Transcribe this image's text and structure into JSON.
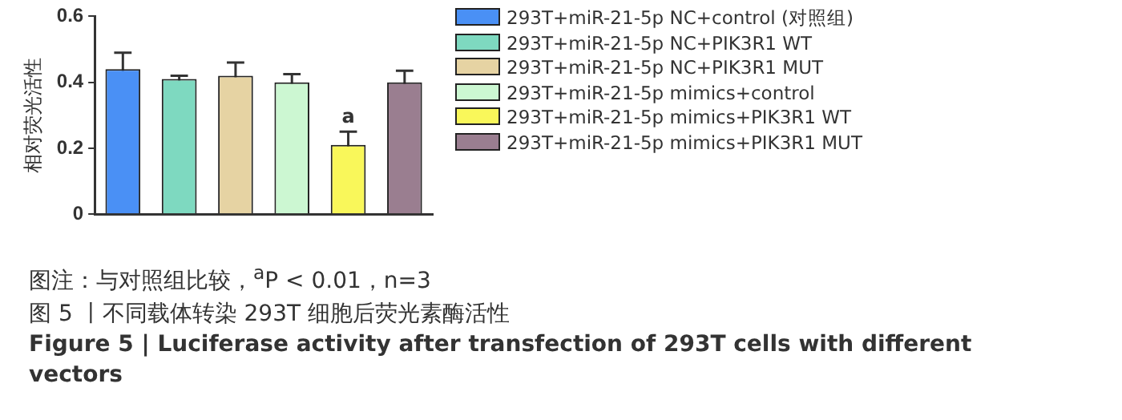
{
  "chart_data": {
    "type": "bar",
    "ylabel": "相对荧光活性",
    "categories": [
      null,
      null,
      null,
      null,
      null,
      null
    ],
    "series": [
      {
        "name": "293T+miR-21-5p NC+control (对照组)",
        "color": "#4a90f5",
        "values": [
          0.44,
          null,
          null,
          null,
          null,
          null
        ],
        "errors": [
          0.05,
          null,
          null,
          null,
          null,
          null
        ]
      },
      {
        "name": "293T+miR-21-5p NC+PIK3R1 WT",
        "color": "#7ed9c0",
        "values": [
          null,
          0.41,
          null,
          null,
          null,
          null
        ],
        "errors": [
          null,
          0.01,
          null,
          null,
          null,
          null
        ]
      },
      {
        "name": "293T+miR-21-5p NC+PIK3R1 MUT",
        "color": "#e6d3a3",
        "values": [
          null,
          null,
          0.42,
          null,
          null,
          null
        ],
        "errors": [
          null,
          null,
          0.04,
          null,
          null,
          null
        ]
      },
      {
        "name": "293T+miR-21-5p mimics+control",
        "color": "#ccf7d2",
        "values": [
          null,
          null,
          null,
          0.4,
          null,
          null
        ],
        "errors": [
          null,
          null,
          null,
          0.025,
          null,
          null
        ]
      },
      {
        "name": "293T+miR-21-5p mimics+PIK3R1 WT",
        "color": "#f9f75a",
        "values": [
          null,
          null,
          null,
          null,
          0.21,
          null
        ],
        "errors": [
          null,
          null,
          null,
          null,
          0.04,
          null
        ],
        "value_labels": [
          null,
          null,
          null,
          null,
          "a",
          null
        ]
      },
      {
        "name": "293T+miR-21-5p mimics+PIK3R1 MUT",
        "color": "#9a7e90",
        "values": [
          null,
          null,
          null,
          null,
          null,
          0.4
        ],
        "errors": [
          null,
          null,
          null,
          null,
          null,
          0.035
        ]
      }
    ],
    "ylim": [
      0,
      0.6
    ],
    "yticks": [
      0,
      0.2,
      0.4,
      0.6
    ],
    "grid": false,
    "legend": "right",
    "annotations": [
      "图注：与对照组比较，$^{a}$P < 0.01，n=3",
      "图 5 丨不同载体转染 293T 细胞后荧光素酶活性",
      "Figure 5 | Luciferase activity after transfection of 293T cells with different vectors"
    ]
  }
}
